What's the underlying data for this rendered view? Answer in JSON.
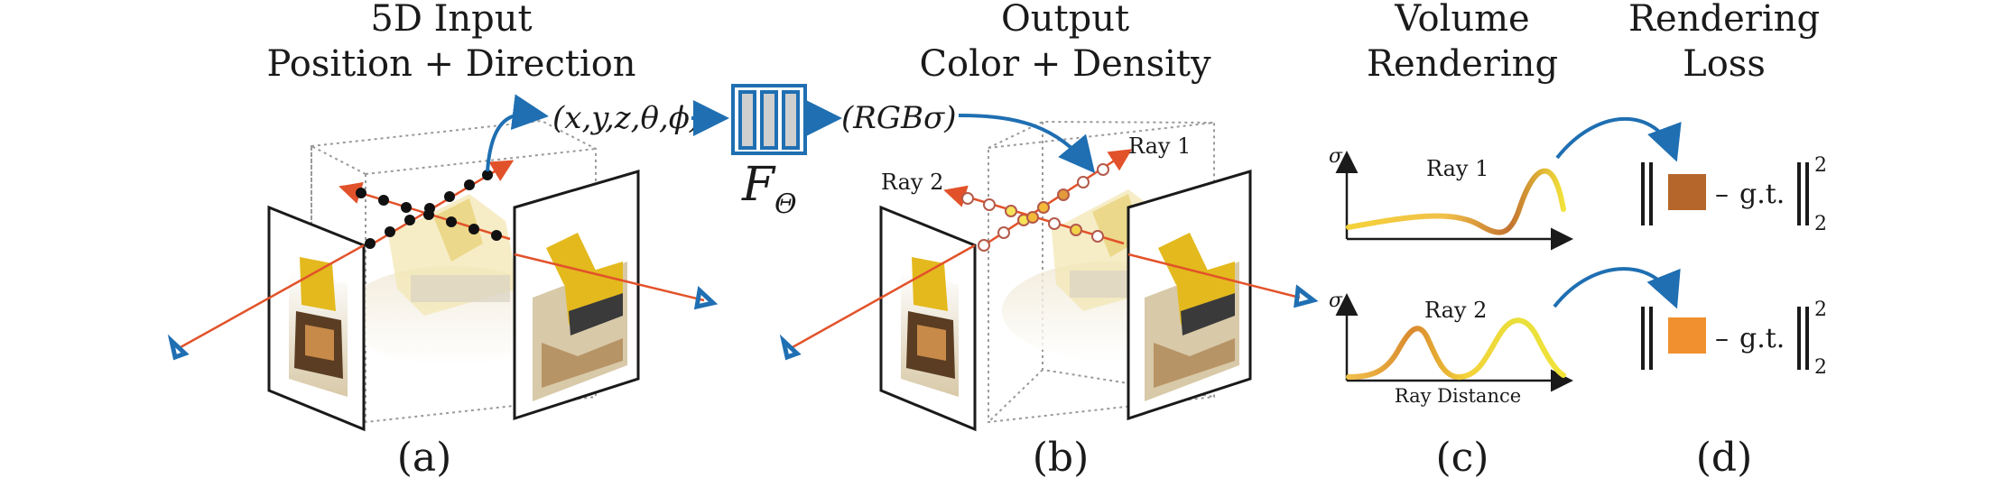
{
  "panels": {
    "a": {
      "title1": "5D Input",
      "title2": "Position + Direction",
      "sub": "(a)"
    },
    "b": {
      "title1": "Output",
      "title2": "Color + Density",
      "sub": "(b)"
    },
    "c": {
      "title1": "Volume",
      "title2": "Rendering",
      "sub": "(c)"
    },
    "d": {
      "title1": "Rendering",
      "title2": "Loss",
      "sub": "(d)"
    }
  },
  "network": {
    "input_label": "(x,y,z,θ,ϕ)",
    "output_label": "(RGBσ)",
    "function_main": "F",
    "function_sub": "Θ"
  },
  "rays": {
    "ray1": "Ray 1",
    "ray2": "Ray 2"
  },
  "plots": {
    "axis_symbol": "σ",
    "plot1_label": "Ray 1",
    "plot2_label": "Ray 2",
    "xlabel": "Ray Distance"
  },
  "loss": {
    "gt": "g.t.",
    "exponent": "2",
    "subscript": "2",
    "minus": "–",
    "color1": "#b5672b",
    "color2": "#f0902f"
  },
  "colors": {
    "arrow_blue": "#1f6fb2",
    "ray_red": "#e2522a",
    "box_grey": "#9a9a9a"
  },
  "icons": [
    "camera-icon",
    "network-icon",
    "arrow-icon",
    "photo-icon"
  ]
}
